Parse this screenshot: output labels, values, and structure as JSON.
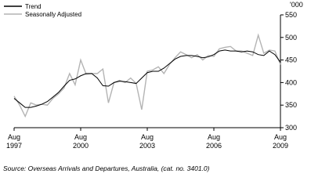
{
  "chart_data": {
    "type": "line",
    "y_unit": "'000",
    "source": "Source: Overseas Arrivals and Departures, Australia, (cat. no. 3401.0)",
    "x": [
      "1997-08",
      "1997-11",
      "1998-02",
      "1998-05",
      "1998-08",
      "1998-11",
      "1999-02",
      "1999-05",
      "1999-08",
      "1999-11",
      "2000-02",
      "2000-05",
      "2000-08",
      "2000-11",
      "2001-02",
      "2001-05",
      "2001-08",
      "2001-11",
      "2002-02",
      "2002-05",
      "2002-08",
      "2002-11",
      "2003-02",
      "2003-05",
      "2003-08",
      "2003-11",
      "2004-02",
      "2004-05",
      "2004-08",
      "2004-11",
      "2005-02",
      "2005-05",
      "2005-08",
      "2005-11",
      "2006-02",
      "2006-05",
      "2006-08",
      "2006-11",
      "2007-02",
      "2007-05",
      "2007-08",
      "2007-11",
      "2008-02",
      "2008-05",
      "2008-08",
      "2008-11",
      "2009-02",
      "2009-05",
      "2009-08"
    ],
    "series": [
      {
        "name": "Trend",
        "color": "#000000",
        "values": [
          365,
          355,
          345,
          345,
          348,
          352,
          358,
          368,
          378,
          392,
          405,
          408,
          415,
          420,
          420,
          410,
          393,
          392,
          400,
          403,
          402,
          400,
          398,
          410,
          422,
          425,
          425,
          432,
          442,
          452,
          458,
          460,
          460,
          458,
          455,
          457,
          462,
          470,
          472,
          470,
          470,
          468,
          470,
          468,
          462,
          460,
          470,
          462,
          445
        ]
      },
      {
        "name": "Seasonally Adjusted",
        "color": "#b4b4b4",
        "values": [
          370,
          350,
          325,
          355,
          350,
          352,
          350,
          365,
          375,
          388,
          420,
          395,
          450,
          418,
          420,
          420,
          430,
          355,
          400,
          405,
          400,
          410,
          398,
          340,
          425,
          428,
          435,
          420,
          440,
          455,
          468,
          462,
          455,
          462,
          450,
          460,
          458,
          475,
          478,
          480,
          470,
          470,
          465,
          460,
          505,
          465,
          472,
          470,
          440
        ]
      }
    ],
    "xlim": [
      "1997-08",
      "2009-08"
    ],
    "xticks": [
      {
        "value": "1997-08",
        "label": [
          "Aug",
          "1997"
        ]
      },
      {
        "value": "2000-08",
        "label": [
          "Aug",
          "2000"
        ]
      },
      {
        "value": "2003-08",
        "label": [
          "Aug",
          "2003"
        ]
      },
      {
        "value": "2006-08",
        "label": [
          "Aug",
          "2006"
        ]
      },
      {
        "value": "2009-08",
        "label": [
          "Aug",
          "2009"
        ]
      }
    ],
    "ylim": [
      300,
      550
    ],
    "yticks": [
      300,
      350,
      400,
      450,
      500,
      550
    ]
  }
}
